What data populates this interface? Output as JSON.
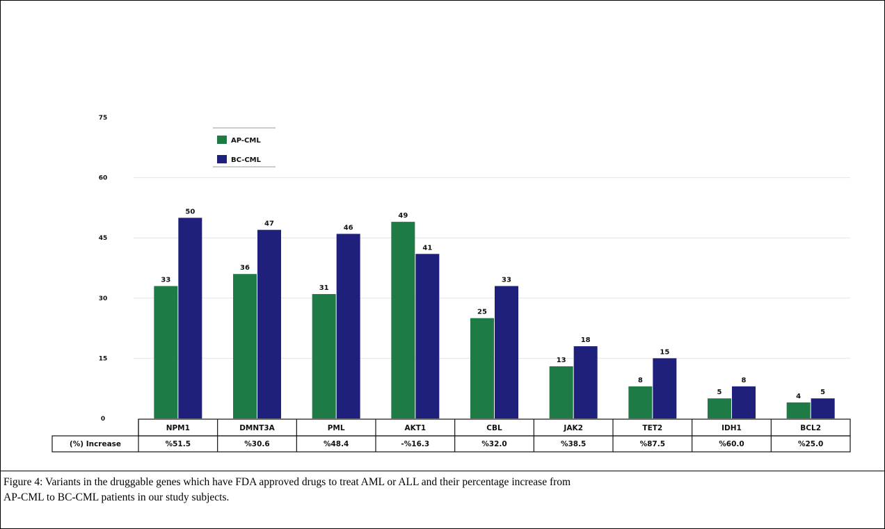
{
  "chart_data": {
    "type": "bar",
    "categories": [
      "NPM1",
      "DMNT3A",
      "PML",
      "AKT1",
      "CBL",
      "JAK2",
      "TET2",
      "IDH1",
      "BCL2"
    ],
    "series": [
      {
        "name": "AP-CML",
        "color": "#1e7b46",
        "values": [
          33,
          36,
          31,
          49,
          25,
          13,
          8,
          5,
          4
        ],
        "labels": [
          "33",
          "36",
          "31",
          "49",
          "25",
          "13",
          "8",
          "5",
          "4"
        ]
      },
      {
        "name": "BC-CML",
        "color": "#1f1f7c",
        "values": [
          50,
          47,
          46,
          41,
          33,
          18,
          15,
          8,
          5
        ],
        "labels": [
          "50",
          "47",
          "46",
          "41",
          "33",
          "18",
          "15",
          "8",
          "5"
        ]
      }
    ],
    "ylim": [
      0,
      75
    ],
    "yticks": [
      "0",
      "15",
      "30",
      "45",
      "60",
      "75"
    ],
    "grid": true,
    "legend_position": "top-left",
    "table": {
      "row_label": "(%) Increase",
      "values": [
        "%51.5",
        "%30.6",
        "%48.4",
        "-%16.3",
        "%32.0",
        "%38.5",
        "%87.5",
        "%60.0",
        "%25.0"
      ]
    }
  },
  "caption": {
    "line1": "Figure 4: Variants in the druggable genes which have FDA approved drugs to treat AML or ALL and their percentage increase from",
    "line2": "AP-CML to BC-CML patients in our study subjects."
  }
}
